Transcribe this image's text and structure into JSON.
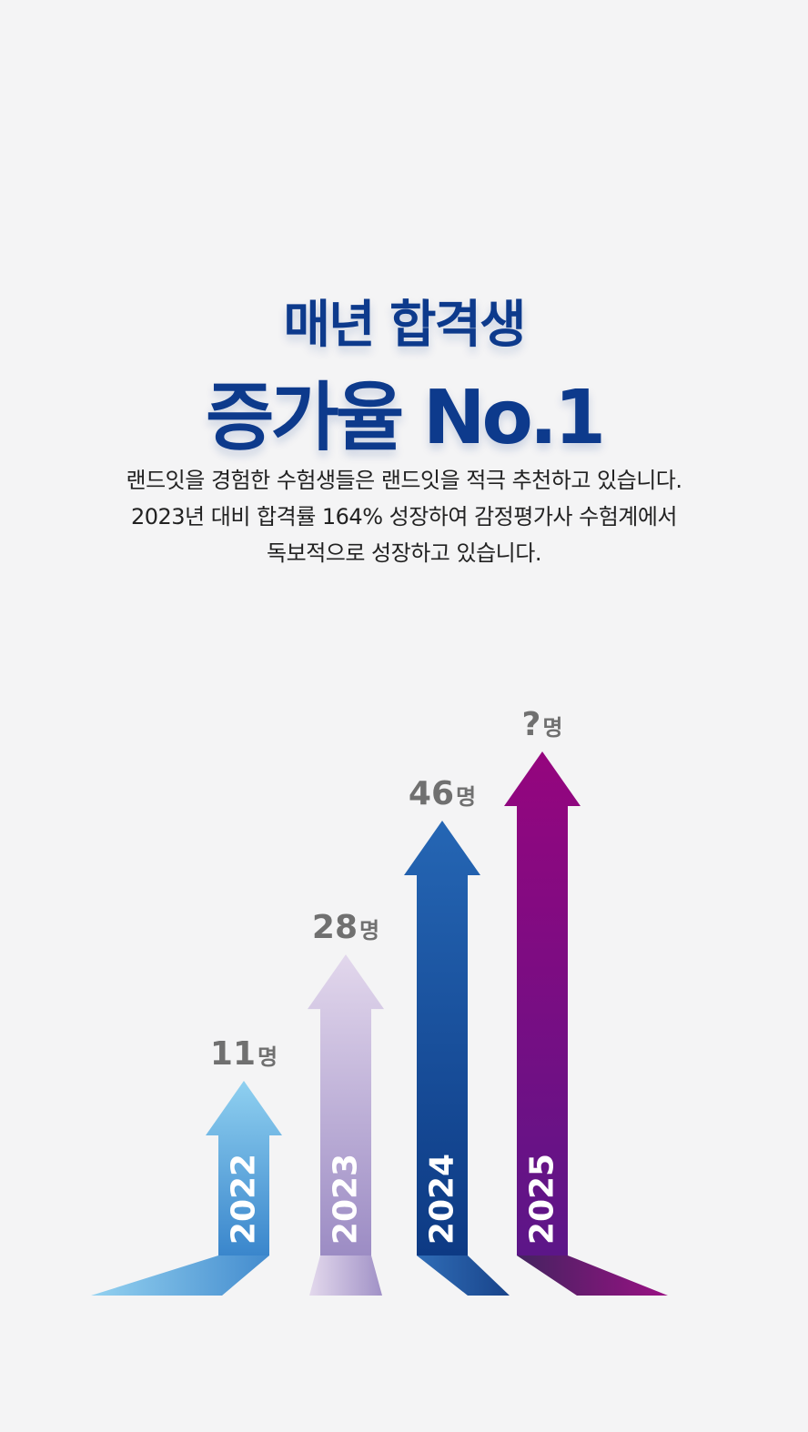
{
  "headline": {
    "line1": "매년 합격생",
    "line2": "증가율 No.1"
  },
  "description": {
    "lines": [
      "랜드잇을 경험한 수험생들은 랜드잇을 적극 추천하고 있습니다.",
      "2023년 대비 합격률 164% 성장하여 감정평가사 수험계에서",
      "독보적으로 성장하고 있습니다."
    ]
  },
  "chart_data": {
    "type": "bar",
    "categories": [
      "2022",
      "2023",
      "2024",
      "2025"
    ],
    "values": [
      11,
      28,
      46,
      null
    ],
    "value_labels": [
      "11",
      "28",
      "46",
      "?"
    ],
    "unit": "명",
    "colors": {
      "2022": [
        "#8fd0f0",
        "#3a86cc"
      ],
      "2023": [
        "#e2d7ec",
        "#9c8cc4"
      ],
      "2024": [
        "#2566b4",
        "#0d3a84"
      ],
      "2025": [
        "#95057e",
        "#5c1688"
      ]
    },
    "label_color": "#707070",
    "year_label_color": "#ffffff",
    "grid": false,
    "legend": "none"
  }
}
